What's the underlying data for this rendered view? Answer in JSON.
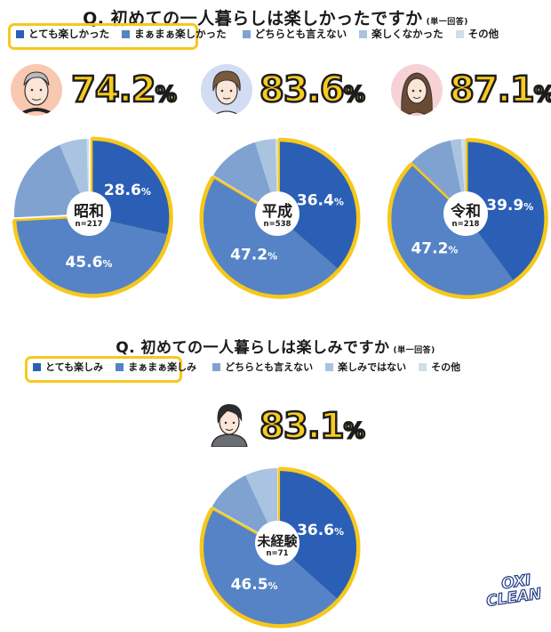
{
  "colors": {
    "very": "#2b5fb6",
    "somewhat": "#5583c6",
    "neutral": "#7fa2d1",
    "not": "#a9c3e0",
    "other": "#cfdfe8",
    "highlight": "#f6c81c",
    "pct_text": "#f8cb1e"
  },
  "q1": {
    "title": "Q. 初めての一人暮らしは楽しかったですか",
    "note": "(単一回答)",
    "legend": [
      "とても楽しかった",
      "まぁまぁ楽しかった",
      "どちらとも言えない",
      "楽しくなかった",
      "その他"
    ]
  },
  "q2": {
    "title": "Q. 初めての一人暮らしは楽しみですか",
    "note": "(単一回答)",
    "legend": [
      "とても楽しみ",
      "まぁまぁ楽しみ",
      "どちらとも言えない",
      "楽しみではない",
      "その他"
    ]
  },
  "charts": {
    "showa": {
      "label": "昭和",
      "n": "n=217",
      "total": "74.2",
      "pct_sign": "%",
      "l1": "28.6",
      "l2": "45.6"
    },
    "heisei": {
      "label": "平成",
      "n": "n=538",
      "total": "83.6",
      "pct_sign": "%",
      "l1": "36.4",
      "l2": "47.2"
    },
    "reiwa": {
      "label": "令和",
      "n": "n=218",
      "total": "87.1",
      "pct_sign": "%",
      "l1": "39.9",
      "l2": "47.2"
    },
    "none": {
      "label": "未経験",
      "n": "n=71",
      "total": "83.1",
      "pct_sign": "%",
      "l1": "36.6",
      "l2": "46.5"
    }
  },
  "logo": {
    "line1": "OXI",
    "line2": "CLEAN"
  },
  "chart_data": [
    {
      "type": "pie",
      "title": "Q. 初めての一人暮らしは楽しかったですか (単一回答) — 昭和 n=217",
      "categories": [
        "とても楽しかった",
        "まぁまぁ楽しかった",
        "どちらとも言えない",
        "楽しくなかった",
        "その他"
      ],
      "values": [
        28.6,
        45.6,
        19.4,
        5.9,
        0.5
      ],
      "highlight_total": 74.2
    },
    {
      "type": "pie",
      "title": "Q. 初めての一人暮らしは楽しかったですか (単一回答) — 平成 n=538",
      "categories": [
        "とても楽しかった",
        "まぁまぁ楽しかった",
        "どちらとも言えない",
        "楽しくなかった",
        "その他"
      ],
      "values": [
        36.4,
        47.2,
        11.6,
        4.4,
        0.4
      ],
      "highlight_total": 83.6
    },
    {
      "type": "pie",
      "title": "Q. 初めての一人暮らしは楽しかったですか (単一回答) — 令和 n=218",
      "categories": [
        "とても楽しかった",
        "まぁまぁ楽しかった",
        "どちらとも言えない",
        "楽しくなかった",
        "その他"
      ],
      "values": [
        39.9,
        47.2,
        9.6,
        2.3,
        1.0
      ],
      "highlight_total": 87.1
    },
    {
      "type": "pie",
      "title": "Q. 初めての一人暮らしは楽しみですか (単一回答) — 未経験 n=71",
      "categories": [
        "とても楽しみ",
        "まぁまぁ楽しみ",
        "どちらとも言えない",
        "楽しみではない",
        "その他"
      ],
      "values": [
        36.6,
        46.5,
        9.9,
        7.0,
        0.0
      ],
      "highlight_total": 83.1
    }
  ]
}
